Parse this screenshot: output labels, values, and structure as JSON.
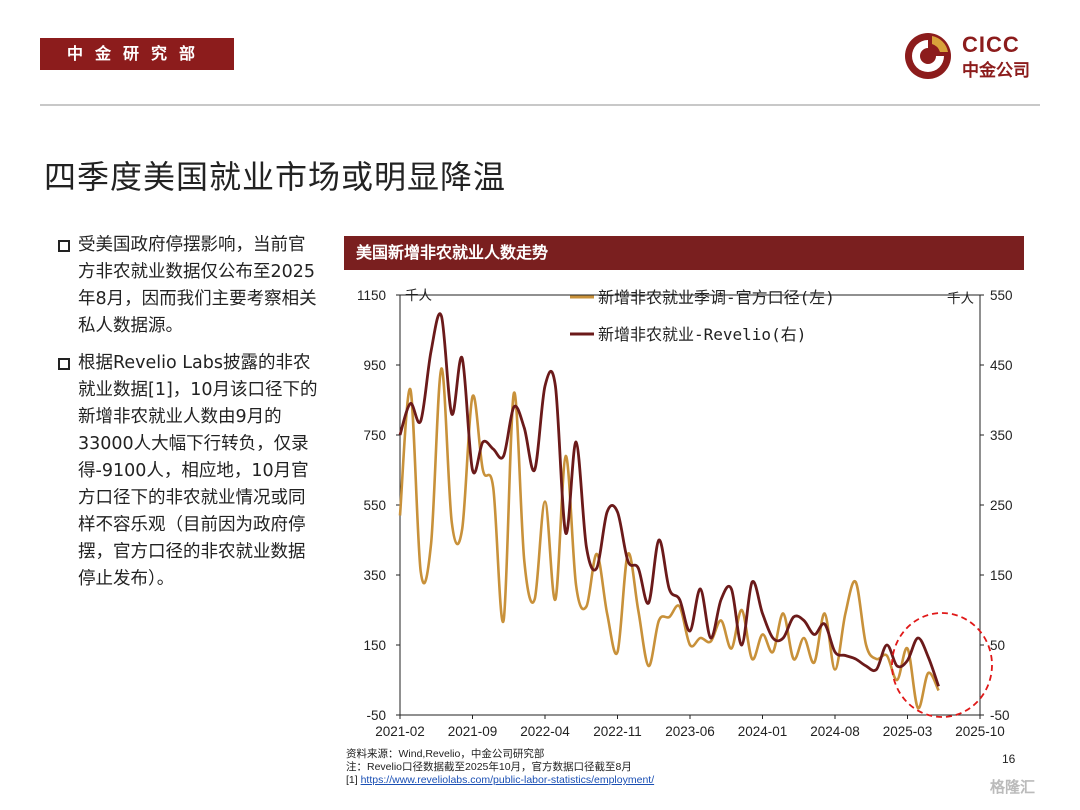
{
  "header": {
    "dept": "中金研究部",
    "logo_en": "CICC",
    "logo_cn": "中金公司"
  },
  "title": "四季度美国就业市场或明显降温",
  "bullets": [
    "受美国政府停摆影响，当前官方非农就业数据仅公布至2025年8月，因而我们主要考察相关私人数据源。",
    "根据Revelio Labs披露的非农就业数据[1]，10月该口径下的新增非农就业人数由9月的33000人大幅下行转负，仅录得-9100人，相应地，10月官方口径下的非农就业情况或同样不容乐观（目前因为政府停摆，官方口径的非农就业数据停止发布）。"
  ],
  "chart_header": "美国新增非农就业人数走势",
  "footer": {
    "source": "资料来源：Wind,Revelio，中金公司研究部",
    "note": "注：Revelio口径数据截至2025年10月，官方数据口径截至8月",
    "ref_prefix": "[1] ",
    "ref_link": "https://www.reveliolabs.com/public-labor-statistics/employment/"
  },
  "page_number": "16",
  "watermark": "格隆汇",
  "chart_data": {
    "type": "line",
    "title": "美国新增非农就业人数走势",
    "x_labels": [
      "2021-02",
      "2021-09",
      "2022-04",
      "2022-11",
      "2023-06",
      "2024-01",
      "2024-08",
      "2025-03",
      "2025-10"
    ],
    "x_start": "2021-02",
    "left_axis": {
      "unit": "千人",
      "min": -50,
      "max": 1150,
      "ticks": [
        -50,
        150,
        350,
        550,
        750,
        950,
        1150
      ]
    },
    "right_axis": {
      "unit": "千人",
      "min": -50,
      "max": 550,
      "ticks": [
        -50,
        50,
        150,
        250,
        350,
        450,
        550
      ]
    },
    "legend_position": "top-center",
    "highlight": "red dashed ellipse around 2025-03 to 2025-10",
    "series": [
      {
        "name": "新增非农就业季调-官方口径(左)",
        "axis": "left",
        "color": "#c8913a",
        "start": "2021-02",
        "values": [
          520,
          880,
          360,
          440,
          940,
          500,
          480,
          860,
          650,
          600,
          220,
          870,
          390,
          280,
          560,
          280,
          690,
          320,
          260,
          410,
          240,
          130,
          410,
          250,
          90,
          220,
          230,
          260,
          150,
          170,
          160,
          220,
          140,
          250,
          110,
          180,
          130,
          240,
          110,
          170,
          100,
          240,
          80,
          240,
          330,
          150,
          110,
          120,
          50,
          140,
          -30,
          70,
          20
        ]
      },
      {
        "name": "新增非农就业-Revelio(右)",
        "axis": "right",
        "color": "#6b1a1a",
        "start": "2021-02",
        "values": [
          350,
          395,
          370,
          470,
          520,
          380,
          460,
          300,
          340,
          330,
          320,
          390,
          360,
          300,
          420,
          420,
          210,
          340,
          190,
          160,
          240,
          240,
          170,
          160,
          110,
          200,
          130,
          115,
          70,
          130,
          60,
          115,
          130,
          50,
          140,
          95,
          60,
          60,
          90,
          85,
          65,
          80,
          40,
          35,
          30,
          20,
          15,
          50,
          20,
          28,
          60,
          33,
          -9
        ]
      }
    ]
  }
}
